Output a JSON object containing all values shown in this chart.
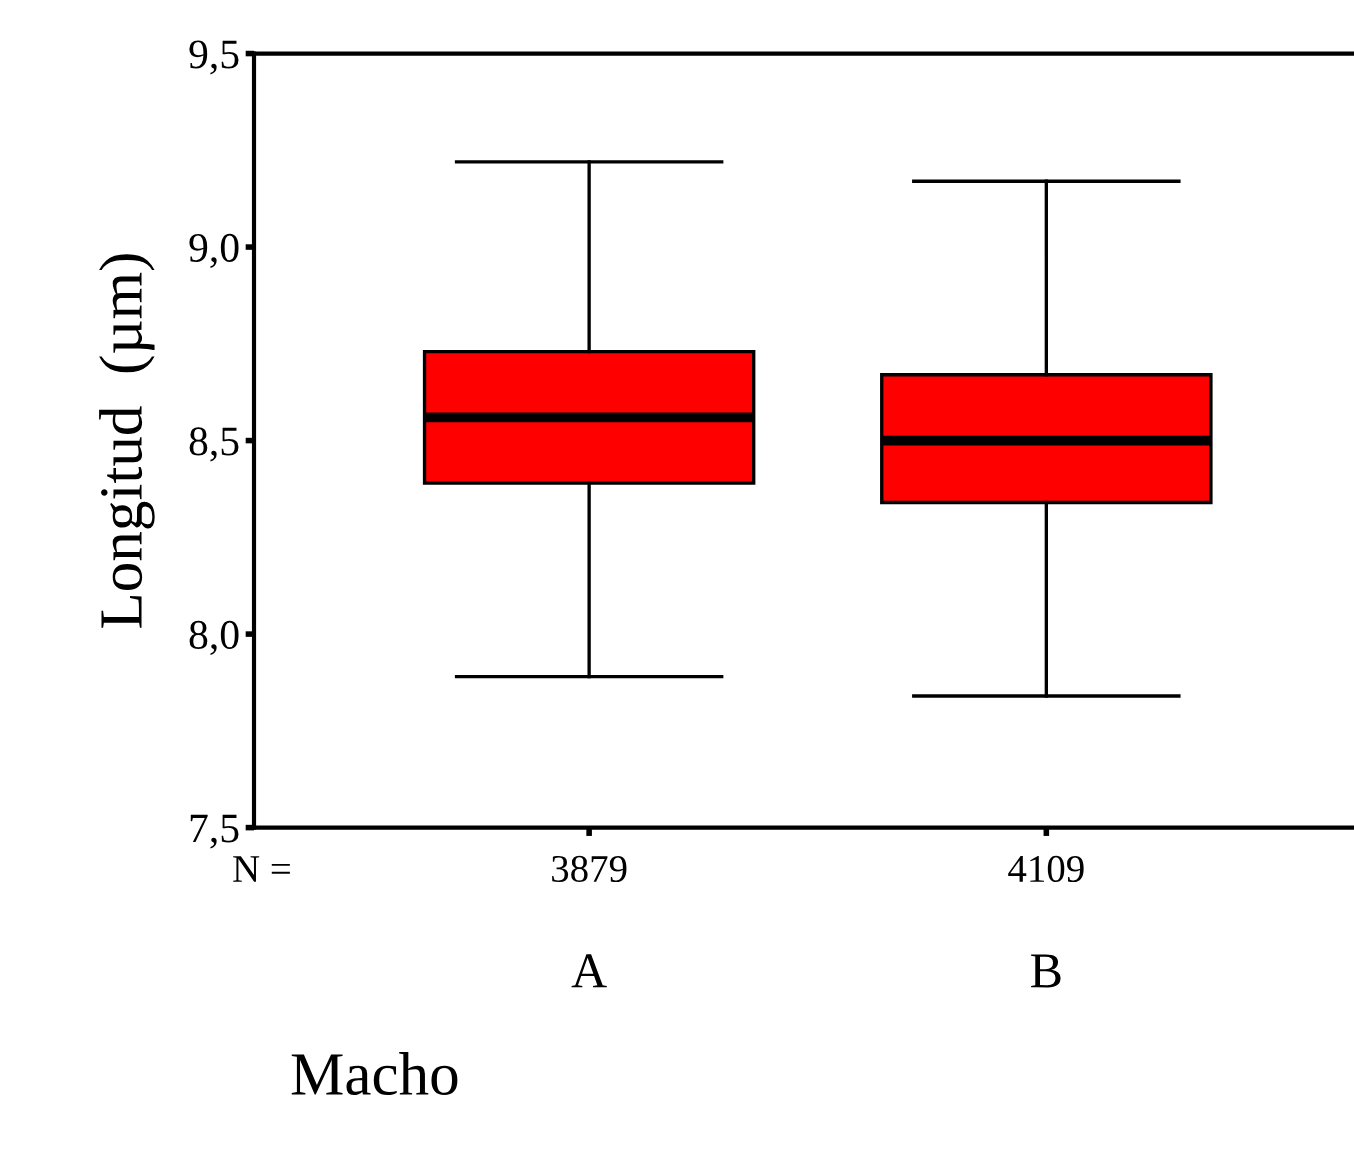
{
  "chart_data": {
    "type": "box",
    "xlabel": "Macho",
    "ylabel": "Longitud  (µm)",
    "categories": [
      "A",
      "B"
    ],
    "series": [
      {
        "color": "#ff0000",
        "boxes": [
          {
            "low": 7.89,
            "q1": 8.39,
            "median": 8.56,
            "q3": 8.73,
            "high": 9.22
          },
          {
            "low": 7.84,
            "q1": 8.34,
            "median": 8.5,
            "q3": 8.67,
            "high": 9.17
          }
        ]
      }
    ],
    "ylim": [
      7.5,
      9.5
    ],
    "yticks": [
      {
        "value": 7.5,
        "label": "7,5"
      },
      {
        "value": 8.0,
        "label": "8,0"
      },
      {
        "value": 8.5,
        "label": "8,5"
      },
      {
        "value": 9.0,
        "label": "9,0"
      },
      {
        "value": 9.5,
        "label": "9,5"
      }
    ],
    "annotations": [
      "N =",
      "3879",
      "4109"
    ],
    "grid": false,
    "legend": false
  }
}
